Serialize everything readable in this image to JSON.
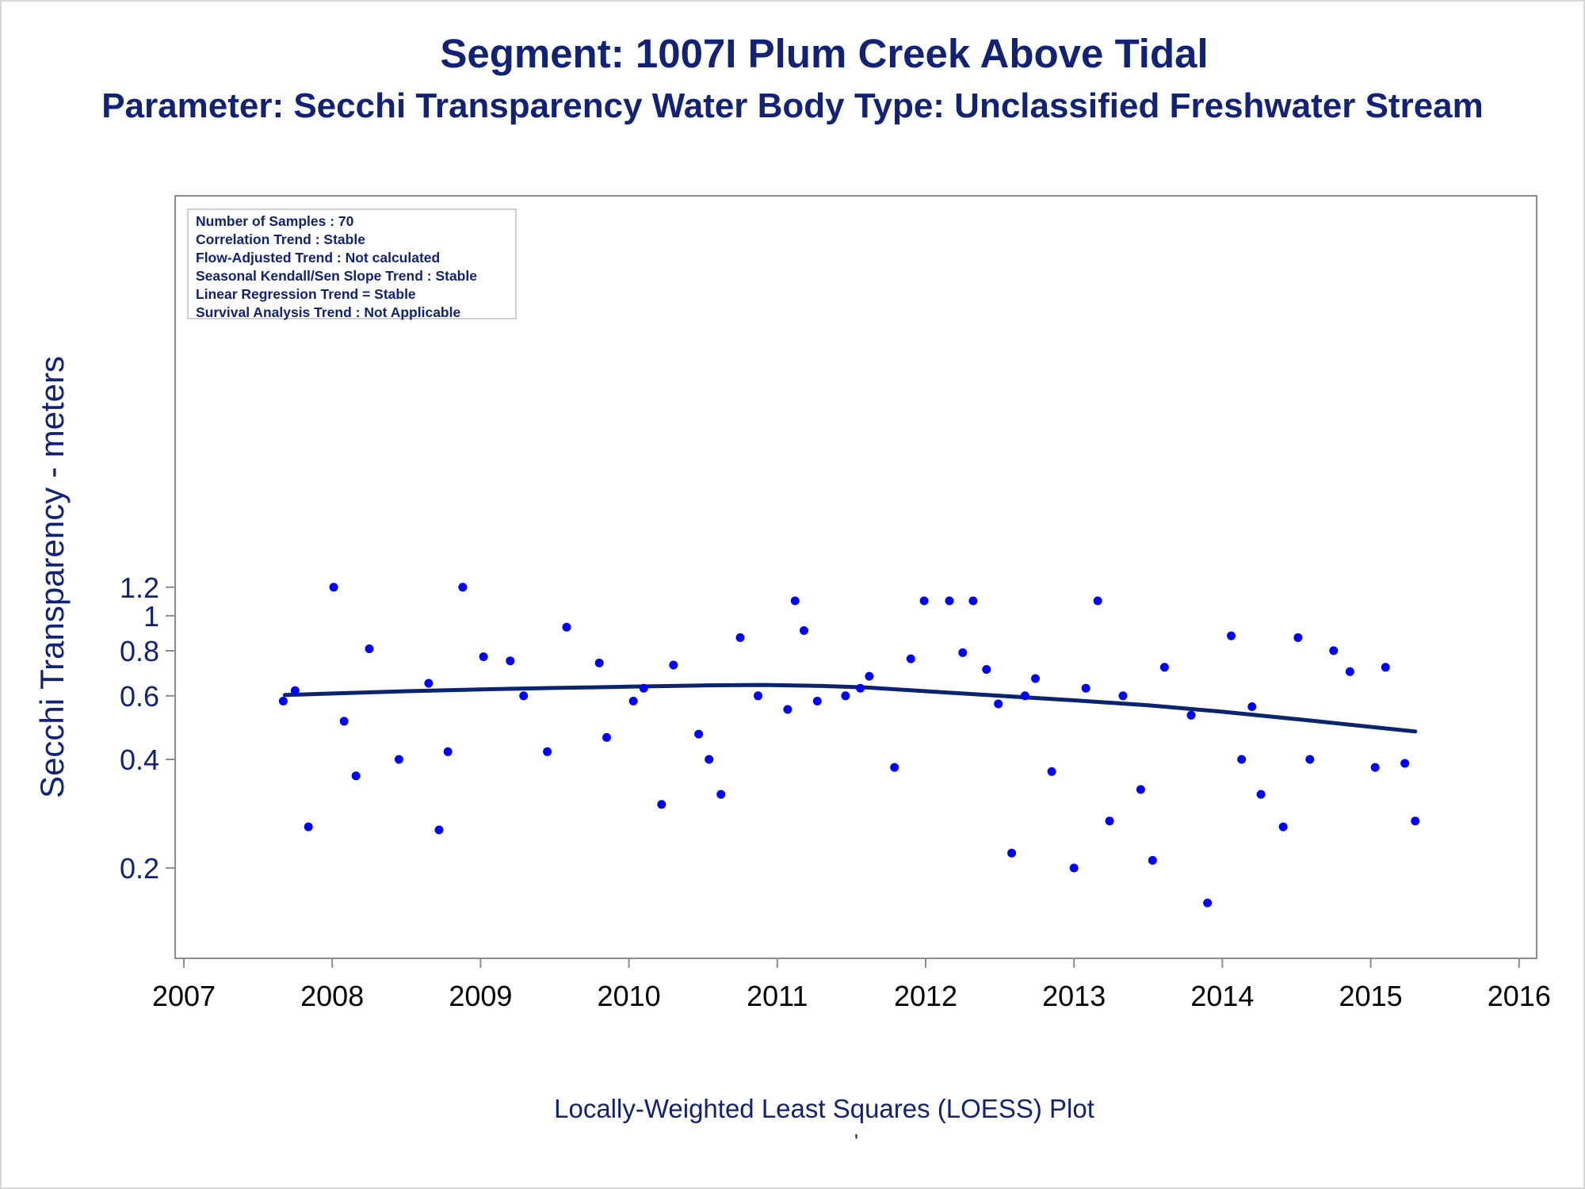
{
  "title": "Segment: 1007I  Plum Creek Above Tidal",
  "subtitle": "Parameter: Secchi Transparency   Water Body Type: Unclassified Freshwater Stream",
  "footnote": "Locally-Weighted Least Squares (LOESS) Plot",
  "footnote_mark": "'",
  "stats": [
    "Number of Samples : 70",
    "Correlation Trend : Stable",
    "Flow-Adjusted Trend : Not calculated",
    "Seasonal Kendall/Sen Slope Trend : Stable",
    "Linear Regression Trend = Stable",
    "Survival Analysis Trend : Not Applicable"
  ],
  "chart_data": {
    "type": "scatter",
    "title": "Segment: 1007I  Plum Creek Above Tidal",
    "subtitle": "Parameter: Secchi Transparency   Water Body Type: Unclassified Freshwater Stream",
    "xlabel": "",
    "ylabel": "Secchi Transparency - meters",
    "y_scale": "log",
    "xlim": [
      2007,
      2016
    ],
    "ylim": [
      0.15,
      1.22
    ],
    "xticks": [
      "2007",
      "2008",
      "2009",
      "2010",
      "2011",
      "2012",
      "2013",
      "2014",
      "2015",
      "2016"
    ],
    "yticks": [
      "0.2",
      "0.4",
      "0.6",
      "0.8",
      "1",
      "1.2"
    ],
    "grid": false,
    "colors": {
      "points": "#0000ff",
      "loess": "#0a2470",
      "text": "#112277",
      "axis": "#808080"
    },
    "series": [
      {
        "type": "scatter",
        "points": [
          [
            2007.67,
            0.58
          ],
          [
            2007.75,
            0.62
          ],
          [
            2007.84,
            0.26
          ],
          [
            2008.01,
            1.2
          ],
          [
            2008.08,
            0.51
          ],
          [
            2008.16,
            0.36
          ],
          [
            2008.25,
            0.81
          ],
          [
            2008.45,
            0.4
          ],
          [
            2008.65,
            0.65
          ],
          [
            2008.72,
            0.255
          ],
          [
            2008.78,
            0.42
          ],
          [
            2008.88,
            1.2
          ],
          [
            2009.02,
            0.77
          ],
          [
            2009.2,
            0.75
          ],
          [
            2009.29,
            0.6
          ],
          [
            2009.45,
            0.42
          ],
          [
            2009.58,
            0.93
          ],
          [
            2009.8,
            0.74
          ],
          [
            2009.85,
            0.46
          ],
          [
            2010.03,
            0.58
          ],
          [
            2010.1,
            0.63
          ],
          [
            2010.22,
            0.3
          ],
          [
            2010.3,
            0.73
          ],
          [
            2010.47,
            0.47
          ],
          [
            2010.54,
            0.4
          ],
          [
            2010.62,
            0.32
          ],
          [
            2010.75,
            0.87
          ],
          [
            2010.87,
            0.6
          ],
          [
            2011.07,
            0.55
          ],
          [
            2011.12,
            1.1
          ],
          [
            2011.18,
            0.91
          ],
          [
            2011.27,
            0.58
          ],
          [
            2011.46,
            0.6
          ],
          [
            2011.56,
            0.63
          ],
          [
            2011.62,
            0.68
          ],
          [
            2011.79,
            0.38
          ],
          [
            2011.9,
            0.76
          ],
          [
            2011.99,
            1.1
          ],
          [
            2012.16,
            1.1
          ],
          [
            2012.25,
            0.79
          ],
          [
            2012.32,
            1.1
          ],
          [
            2012.41,
            0.71
          ],
          [
            2012.49,
            0.57
          ],
          [
            2012.58,
            0.22
          ],
          [
            2012.67,
            0.6
          ],
          [
            2012.74,
            0.67
          ],
          [
            2012.85,
            0.37
          ],
          [
            2013.0,
            0.2
          ],
          [
            2013.08,
            0.63
          ],
          [
            2013.16,
            1.1
          ],
          [
            2013.24,
            0.27
          ],
          [
            2013.33,
            0.6
          ],
          [
            2013.45,
            0.33
          ],
          [
            2013.53,
            0.21
          ],
          [
            2013.61,
            0.72
          ],
          [
            2013.79,
            0.53
          ],
          [
            2013.9,
            0.16
          ],
          [
            2014.06,
            0.88
          ],
          [
            2014.13,
            0.4
          ],
          [
            2014.2,
            0.56
          ],
          [
            2014.26,
            0.32
          ],
          [
            2014.41,
            0.26
          ],
          [
            2014.51,
            0.87
          ],
          [
            2014.59,
            0.4
          ],
          [
            2014.75,
            0.8
          ],
          [
            2014.86,
            0.7
          ],
          [
            2015.03,
            0.38
          ],
          [
            2015.1,
            0.72
          ],
          [
            2015.23,
            0.39
          ],
          [
            2015.3,
            0.27
          ]
        ]
      },
      {
        "type": "line",
        "points": [
          [
            2007.68,
            0.603
          ],
          [
            2008.0,
            0.609
          ],
          [
            2008.5,
            0.618
          ],
          [
            2009.0,
            0.625
          ],
          [
            2009.5,
            0.631
          ],
          [
            2010.0,
            0.636
          ],
          [
            2010.5,
            0.641
          ],
          [
            2010.9,
            0.643
          ],
          [
            2011.3,
            0.639
          ],
          [
            2011.6,
            0.633
          ],
          [
            2012.0,
            0.618
          ],
          [
            2012.5,
            0.6
          ],
          [
            2013.0,
            0.583
          ],
          [
            2013.5,
            0.565
          ],
          [
            2014.0,
            0.542
          ],
          [
            2014.5,
            0.517
          ],
          [
            2015.0,
            0.492
          ],
          [
            2015.3,
            0.478
          ]
        ]
      }
    ]
  }
}
